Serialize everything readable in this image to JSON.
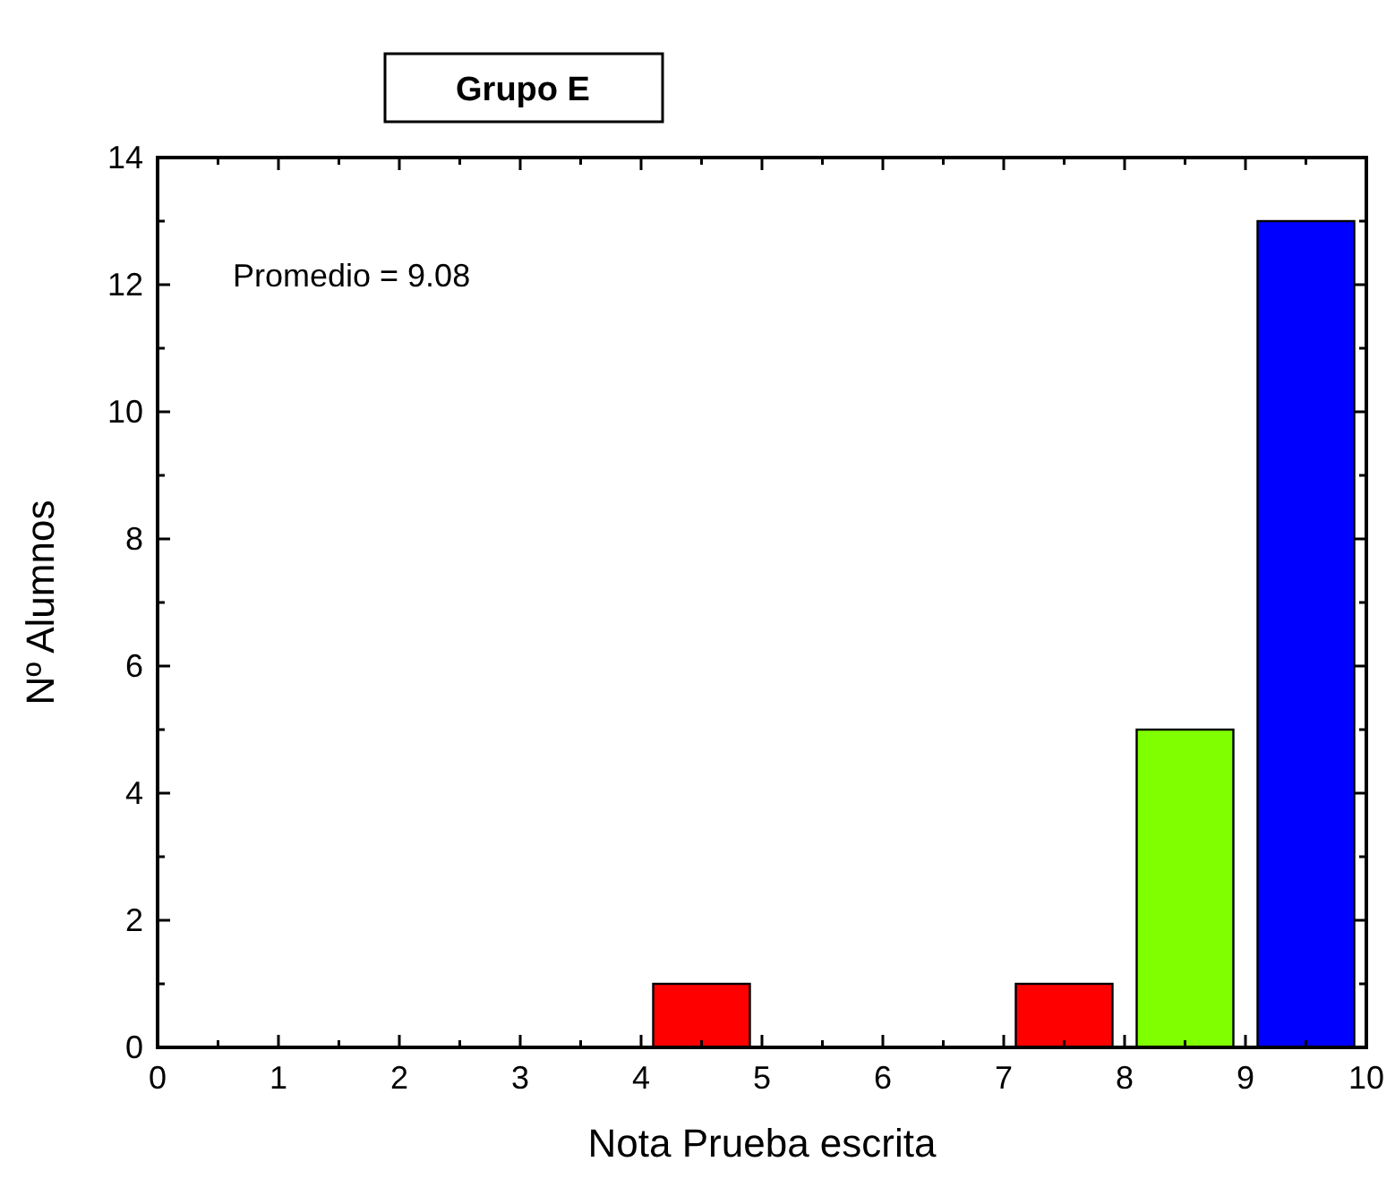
{
  "chart_data": {
    "type": "bar",
    "title": "Grupo E",
    "xlabel": "Nota Prueba escrita",
    "ylabel": "Nº Alumnos",
    "x": [
      4.5,
      7.5,
      8.5,
      9.5
    ],
    "values": [
      1,
      1,
      5,
      13
    ],
    "colors": [
      "#ff0000",
      "#ff0000",
      "#80ff00",
      "#0000ff"
    ],
    "xlim": [
      0,
      10
    ],
    "xticks": [
      0,
      1,
      2,
      3,
      4,
      5,
      6,
      7,
      8,
      9,
      10
    ],
    "ylim": [
      0,
      14
    ],
    "yticks": [
      0,
      2,
      4,
      6,
      8,
      10,
      12,
      14
    ],
    "annotations": [
      "Promedio = 9.08"
    ],
    "grid": false
  }
}
